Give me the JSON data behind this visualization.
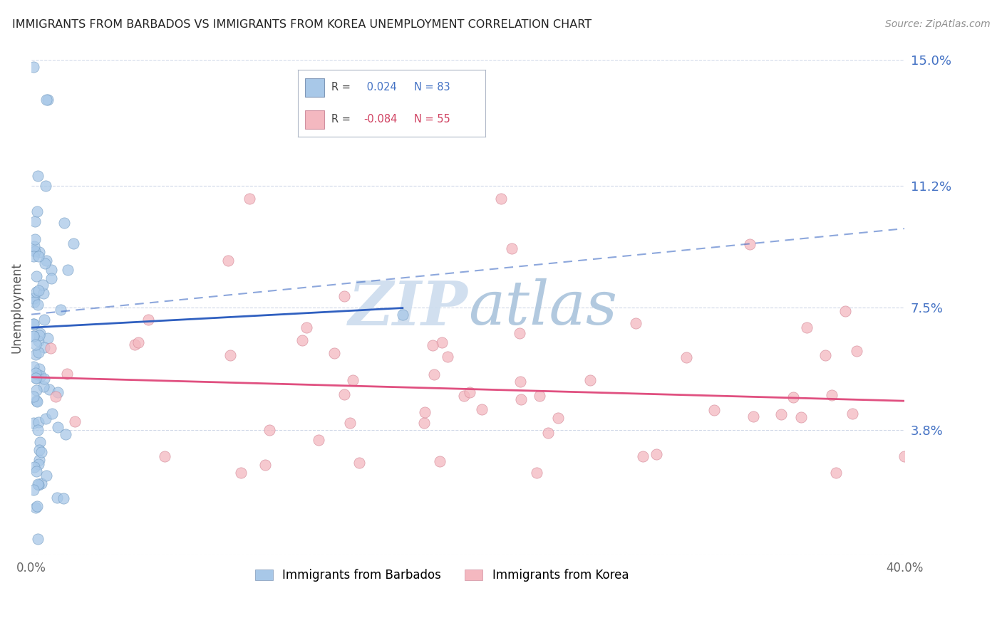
{
  "title": "IMMIGRANTS FROM BARBADOS VS IMMIGRANTS FROM KOREA UNEMPLOYMENT CORRELATION CHART",
  "source": "Source: ZipAtlas.com",
  "ylabel": "Unemployment",
  "x_min": 0.0,
  "x_max": 0.4,
  "y_min": 0.0,
  "y_max": 0.15,
  "y_ticks": [
    0.0,
    0.038,
    0.075,
    0.112,
    0.15
  ],
  "y_tick_labels": [
    "",
    "3.8%",
    "7.5%",
    "11.2%",
    "15.0%"
  ],
  "x_ticks": [
    0.0,
    0.4
  ],
  "x_tick_labels": [
    "0.0%",
    "40.0%"
  ],
  "legend1_label": "Immigrants from Barbados",
  "legend2_label": "Immigrants from Korea",
  "r1": 0.024,
  "n1": 83,
  "r2": -0.084,
  "n2": 55,
  "color1": "#a8c8e8",
  "color2": "#f4b8c0",
  "trendline1_color": "#3060c0",
  "trendline2_color": "#e05080",
  "background_color": "#ffffff",
  "watermark_color": "#d8e8f4",
  "grid_color": "#d0d8e8",
  "tick_label_color": "#4472c4",
  "source_color": "#909090",
  "title_color": "#222222"
}
